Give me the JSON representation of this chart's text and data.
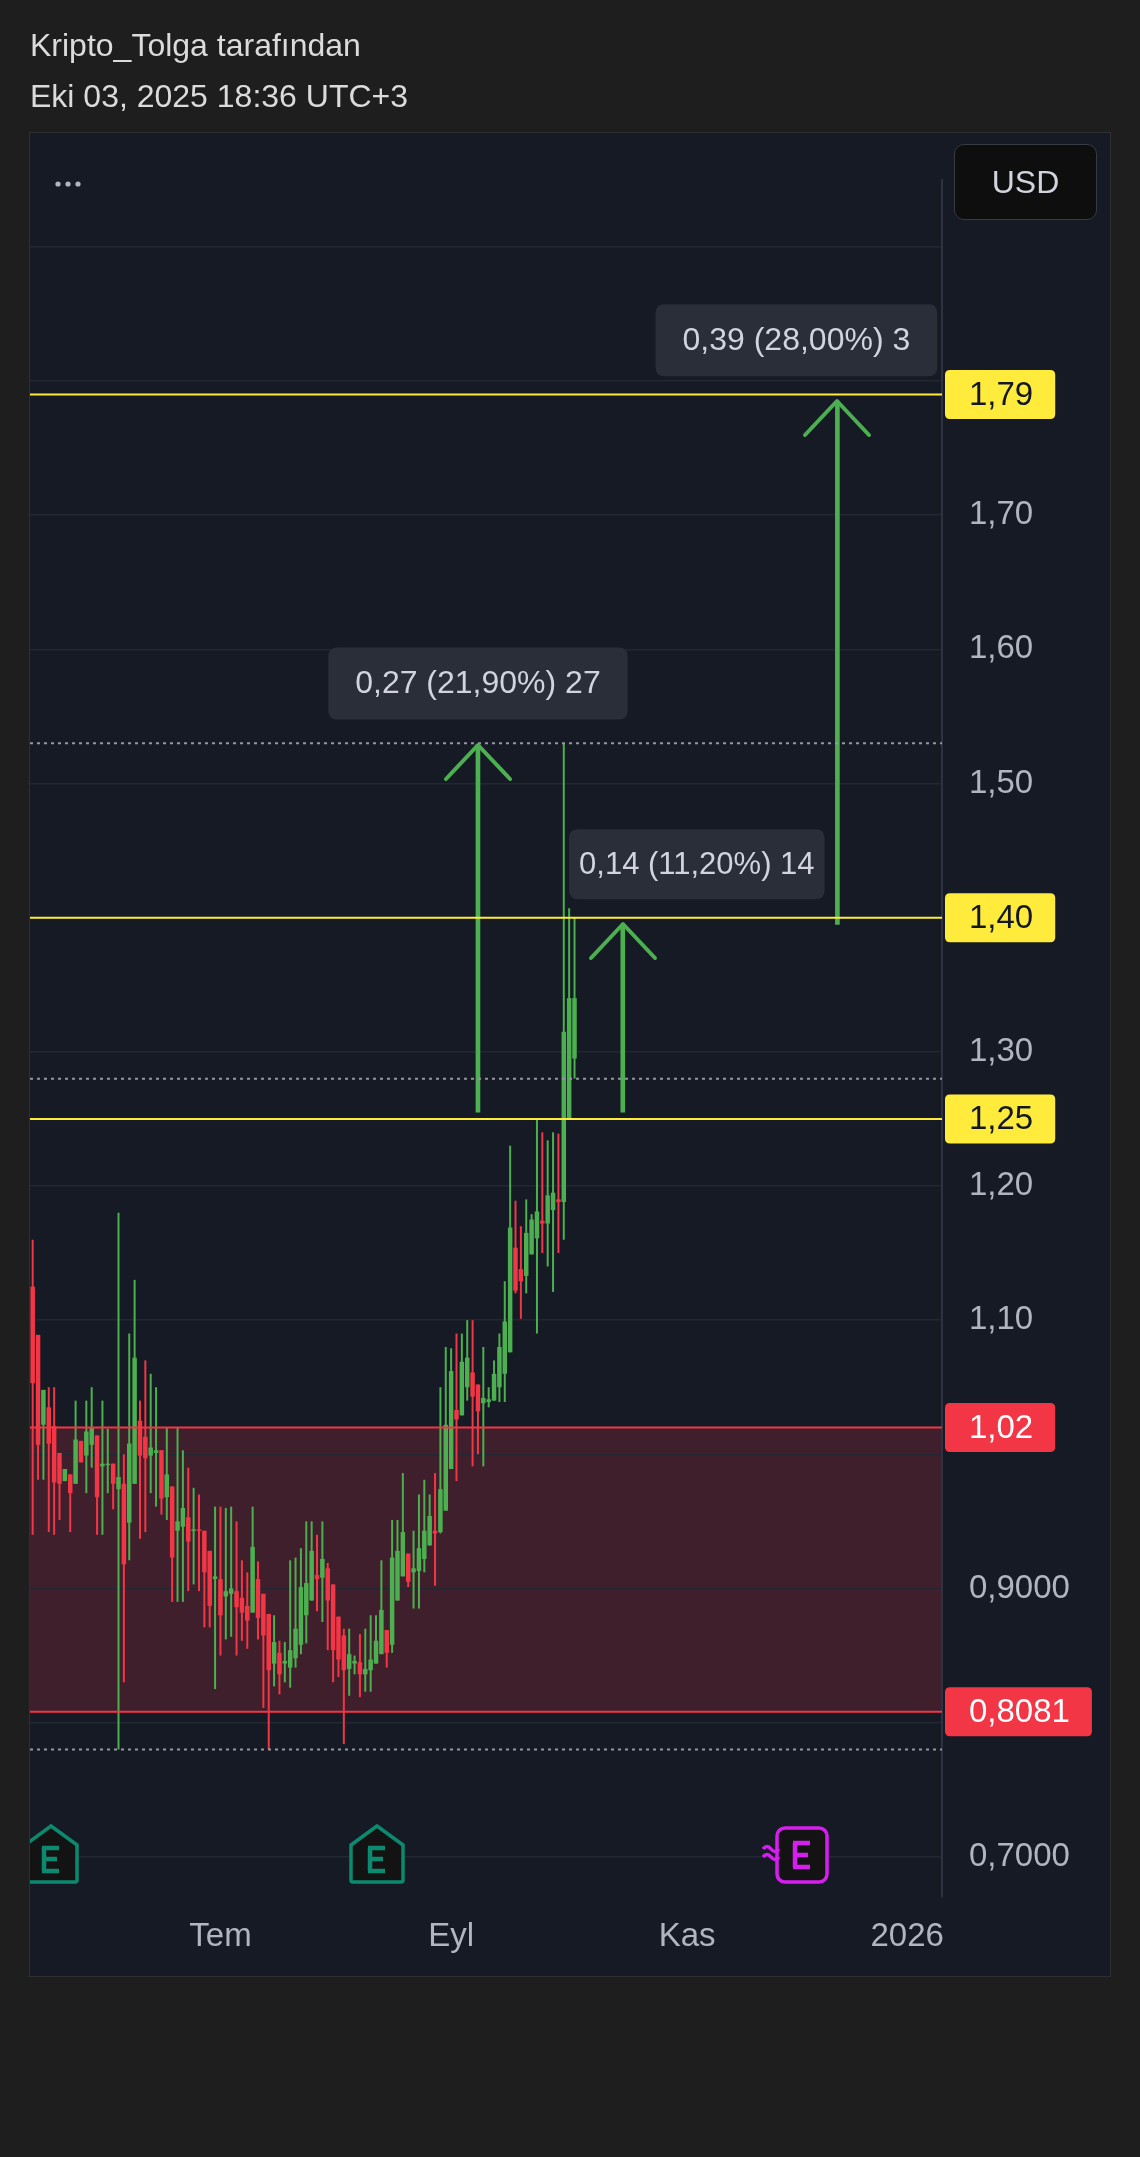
{
  "chart_data": {
    "type": "candlestick",
    "title": "Kripto_Tolga tarafından",
    "subtitle": "Eki 03, 2025 18:36 UTC+3",
    "ylabel": "USD",
    "categories": [
      null,
      null,
      null,
      null,
      null,
      null,
      null,
      null,
      null,
      null,
      null,
      null,
      null,
      null,
      null,
      null,
      null,
      null,
      null,
      null,
      null,
      null,
      null,
      null,
      null,
      null,
      null,
      null,
      null,
      null,
      null,
      null,
      null,
      null,
      null,
      "Tem",
      null,
      null,
      null,
      null,
      null,
      null,
      null,
      null,
      null,
      null,
      null,
      null,
      null,
      null,
      null,
      null,
      null,
      null,
      null,
      null,
      null,
      null,
      null,
      null,
      null,
      null,
      null,
      null,
      null,
      null,
      null,
      null,
      null,
      null,
      null,
      null,
      null,
      null,
      null,
      null,
      null,
      null,
      "Eyl",
      null,
      null,
      null,
      null,
      null,
      null,
      null,
      null,
      null,
      null,
      null,
      null,
      null,
      null,
      null,
      null,
      null,
      null,
      null,
      null,
      null,
      null,
      null,
      null,
      null,
      null,
      null,
      null,
      null,
      null,
      null,
      null,
      null,
      null,
      null,
      null,
      null,
      null,
      null,
      null,
      null,
      null,
      null,
      "Kas",
      null,
      null,
      null,
      null,
      null,
      null,
      null,
      null,
      null,
      null,
      null,
      null,
      null,
      null,
      null,
      null,
      null,
      null,
      null,
      null,
      null,
      null,
      null,
      null,
      null,
      null,
      null,
      null,
      null,
      null,
      null,
      null,
      null,
      null,
      null,
      null,
      null,
      null,
      null,
      null,
      "2026",
      null,
      null,
      null,
      null,
      null,
      null
    ],
    "ohlc": [
      [
        1.125,
        1.16,
        0.94,
        1.053
      ],
      [
        1.089,
        1.089,
        0.981,
        1.007
      ],
      [
        1.022,
        1.048,
        0.981,
        1.048
      ],
      [
        1.035,
        1.05,
        0.942,
        1.008
      ],
      [
        1.021,
        1.05,
        0.94,
        0.979
      ],
      [
        1.001,
        1.001,
        0.951,
        0.978
      ],
      [
        0.98,
        0.989,
        0.98,
        0.989
      ],
      [
        0.985,
        0.985,
        0.942,
        0.971
      ],
      [
        0.978,
        1.04,
        0.978,
        1.011
      ],
      [
        1.01,
        1.01,
        0.994,
        0.994
      ],
      [
        0.999,
        1.04,
        0.971,
        1.017
      ],
      [
        1.007,
        1.05,
        0.99,
        1.02
      ],
      [
        1.014,
        1.014,
        0.94,
        0.968
      ],
      [
        0.991,
        1.04,
        0.94,
        0.993
      ],
      [
        0.992,
        1.019,
        0.971,
        0.993
      ],
      [
        0.993,
        0.993,
        0.959,
        0.978
      ],
      [
        0.974,
        1.18,
        0.78,
        0.983
      ],
      [
        0.978,
        1.0,
        0.83,
        0.918
      ],
      [
        0.949,
        1.09,
        0.921,
        1.008
      ],
      [
        0.978,
        1.13,
        0.978,
        1.072
      ],
      [
        1.025,
        1.04,
        0.937,
        0.999
      ],
      [
        1.013,
        1.07,
        0.942,
        0.997
      ],
      [
        0.999,
        1.06,
        0.971,
        1.005
      ],
      [
        1.001,
        1.05,
        0.961,
        1.003
      ],
      [
        1.003,
        1.003,
        0.955,
        0.967
      ],
      [
        0.968,
        1.02,
        0.951,
        0.985
      ],
      [
        0.976,
        0.976,
        0.89,
        0.923
      ],
      [
        0.943,
        1.02,
        0.89,
        0.95
      ],
      [
        0.946,
        1.003,
        0.89,
        0.96
      ],
      [
        0.953,
        0.99,
        0.898,
        0.935
      ],
      [
        0.943,
        0.975,
        0.903,
        0.944
      ],
      [
        0.944,
        0.97,
        0.898,
        0.943
      ],
      [
        0.943,
        0.943,
        0.871,
        0.912
      ],
      [
        0.928,
        0.928,
        0.871,
        0.887
      ],
      [
        0.907,
        0.961,
        0.825,
        0.909
      ],
      [
        0.907,
        0.961,
        0.85,
        0.88
      ],
      [
        0.894,
        0.96,
        0.862,
        0.898
      ],
      [
        0.896,
        0.961,
        0.864,
        0.9
      ],
      [
        0.898,
        0.95,
        0.85,
        0.886
      ],
      [
        0.893,
        0.921,
        0.861,
        0.882
      ],
      [
        0.887,
        0.912,
        0.855,
        0.876
      ],
      [
        0.882,
        0.961,
        0.882,
        0.931
      ],
      [
        0.907,
        0.92,
        0.862,
        0.878
      ],
      [
        0.896,
        0.896,
        0.811,
        0.865
      ],
      [
        0.881,
        0.881,
        0.78,
        0.839
      ],
      [
        0.844,
        0.88,
        0.827,
        0.86
      ],
      [
        0.852,
        0.861,
        0.821,
        0.836
      ],
      [
        0.844,
        0.86,
        0.83,
        0.846
      ],
      [
        0.841,
        0.921,
        0.826,
        0.854
      ],
      [
        0.848,
        0.923,
        0.841,
        0.87
      ],
      [
        0.858,
        0.93,
        0.851,
        0.901
      ],
      [
        0.88,
        0.95,
        0.859,
        0.904
      ],
      [
        0.891,
        0.95,
        0.891,
        0.928
      ],
      [
        0.91,
        0.94,
        0.883,
        0.907
      ],
      [
        0.908,
        0.95,
        0.875,
        0.922
      ],
      [
        0.915,
        0.919,
        0.854,
        0.891
      ],
      [
        0.903,
        0.903,
        0.83,
        0.854
      ],
      [
        0.879,
        0.879,
        0.834,
        0.847
      ],
      [
        0.865,
        0.87,
        0.784,
        0.839
      ],
      [
        0.84,
        0.87,
        0.82,
        0.851
      ],
      [
        0.844,
        0.85,
        0.836,
        0.846
      ],
      [
        0.845,
        0.866,
        0.819,
        0.836
      ],
      [
        0.836,
        0.87,
        0.823,
        0.84
      ],
      [
        0.839,
        0.88,
        0.823,
        0.847
      ],
      [
        0.844,
        0.88,
        0.844,
        0.861
      ],
      [
        0.851,
        0.921,
        0.851,
        0.884
      ],
      [
        0.869,
        0.869,
        0.841,
        0.852
      ],
      [
        0.858,
        0.951,
        0.852,
        0.923
      ],
      [
        0.891,
        0.951,
        0.891,
        0.928
      ],
      [
        0.909,
        0.986,
        0.909,
        0.942
      ],
      [
        0.926,
        0.926,
        0.901,
        0.905
      ],
      [
        0.912,
        0.943,
        0.885,
        0.915
      ],
      [
        0.913,
        0.97,
        0.885,
        0.93
      ],
      [
        0.922,
        0.981,
        0.912,
        0.943
      ],
      [
        0.932,
        0.97,
        0.932,
        0.954
      ],
      [
        0.943,
        0.986,
        0.902,
        0.941
      ],
      [
        0.942,
        1.05,
        0.941,
        0.974
      ],
      [
        0.958,
        1.08,
        0.958,
        1.022
      ],
      [
        0.989,
        1.079,
        0.989,
        1.062
      ],
      [
        1.033,
        1.09,
        0.98,
        1.026
      ],
      [
        1.029,
        1.09,
        1.029,
        1.069
      ],
      [
        1.05,
        1.1,
        1.04,
        1.072
      ],
      [
        1.061,
        1.1,
        0.991,
        1.043
      ],
      [
        1.052,
        1.052,
        1.0,
        1.032
      ],
      [
        1.038,
        1.08,
        0.991,
        1.042
      ],
      [
        1.039,
        1.05,
        1.035,
        1.041
      ],
      [
        1.04,
        1.07,
        1.04,
        1.06
      ],
      [
        1.05,
        1.09,
        1.039,
        1.08
      ],
      [
        1.06,
        1.129,
        1.039,
        1.099
      ],
      [
        1.076,
        1.23,
        1.076,
        1.169
      ],
      [
        1.154,
        1.189,
        1.12,
        1.122
      ],
      [
        1.138,
        1.17,
        1.101,
        1.129
      ],
      [
        1.133,
        1.19,
        1.12,
        1.165
      ],
      [
        1.149,
        1.179,
        1.149,
        1.175
      ],
      [
        1.161,
        1.25,
        1.09,
        1.181
      ],
      [
        1.174,
        1.24,
        1.15,
        1.172
      ],
      [
        1.172,
        1.234,
        1.14,
        1.193
      ],
      [
        1.182,
        1.24,
        1.121,
        1.195
      ],
      [
        1.19,
        1.239,
        1.15,
        1.188
      ],
      [
        1.188,
        1.53,
        1.16,
        1.315
      ],
      [
        1.25,
        1.407,
        1.25,
        1.34
      ],
      [
        1.295,
        1.4,
        1.28,
        1.34
      ],
      null,
      null,
      null,
      null,
      null,
      null,
      null,
      null,
      null,
      null,
      null,
      null,
      null,
      null,
      null,
      null,
      null,
      null,
      null,
      null,
      null,
      null,
      null,
      null,
      null,
      null,
      null,
      null,
      null,
      null,
      null,
      null,
      null,
      null,
      null,
      null,
      null,
      null,
      null,
      null,
      null,
      null,
      null,
      null,
      null,
      null,
      null,
      null,
      null,
      null,
      null,
      null,
      null,
      null,
      null,
      null,
      null,
      null,
      null,
      null,
      null,
      null,
      null,
      null,
      null,
      null,
      null,
      null
    ],
    "colors": [
      "#f23645",
      "#f23645",
      "#4caf50",
      "#f23645",
      "#f23645",
      "#f23645",
      "#4caf50",
      "#f23645",
      "#4caf50",
      "#f23645",
      "#4caf50",
      "#4caf50",
      "#f23645",
      "#4caf50",
      "#4caf50",
      "#f23645",
      "#4caf50",
      "#f23645",
      "#4caf50",
      "#4caf50",
      "#f23645",
      "#f23645",
      "#4caf50",
      "#4caf50",
      "#f23645",
      "#4caf50",
      "#f23645",
      "#4caf50",
      "#4caf50",
      "#f23645",
      "#4caf50",
      "#f23645",
      "#f23645",
      "#f23645",
      "#4caf50",
      "#f23645",
      "#4caf50",
      "#4caf50",
      "#f23645",
      "#f23645",
      "#f23645",
      "#4caf50",
      "#f23645",
      "#f23645",
      "#f23645",
      "#4caf50",
      "#f23645",
      "#4caf50",
      "#4caf50",
      "#4caf50",
      "#4caf50",
      "#4caf50",
      "#4caf50",
      "#f23645",
      "#4caf50",
      "#f23645",
      "#f23645",
      "#f23645",
      "#f23645",
      "#4caf50",
      "#4caf50",
      "#f23645",
      "#4caf50",
      "#4caf50",
      "#4caf50",
      "#4caf50",
      "#f23645",
      "#4caf50",
      "#4caf50",
      "#4caf50",
      "#f23645",
      "#4caf50",
      "#4caf50",
      "#4caf50",
      "#4caf50",
      "#f23645",
      "#4caf50",
      "#4caf50",
      "#4caf50",
      "#f23645",
      "#4caf50",
      "#4caf50",
      "#f23645",
      "#f23645",
      "#4caf50",
      "#4caf50",
      "#4caf50",
      "#4caf50",
      "#4caf50",
      "#4caf50",
      "#f23645",
      "#f23645",
      "#4caf50",
      "#4caf50",
      "#4caf50",
      "#f23645",
      "#4caf50",
      "#4caf50",
      "#f23645",
      "#4caf50",
      "#4caf50",
      "#4caf50",
      null,
      null,
      null,
      null,
      null,
      null,
      null,
      null,
      null,
      null,
      null,
      null,
      null,
      null,
      null,
      null,
      null,
      null,
      null,
      null,
      null,
      null,
      null,
      null,
      null,
      null,
      null,
      null,
      null,
      null,
      null,
      null,
      null,
      null,
      null,
      null,
      null,
      null,
      null,
      null,
      null,
      null,
      null,
      null,
      null,
      null,
      null,
      null,
      null,
      null,
      null,
      null,
      null,
      null,
      null,
      null,
      null,
      null,
      null,
      null,
      null,
      null,
      null,
      null,
      null,
      null,
      null,
      null
    ],
    "series": [
      {
        "type": "bar",
        "color": "#4caf50",
        "base": [
          null,
          null,
          null,
          null,
          null,
          null,
          null,
          null,
          null,
          null,
          null,
          null,
          null,
          null,
          null,
          null,
          null,
          null,
          null,
          null,
          null,
          null,
          null,
          null,
          null,
          null,
          null,
          null,
          null,
          null,
          null,
          null,
          null,
          null,
          null,
          null,
          null,
          null,
          null,
          null,
          null,
          null,
          null,
          null,
          null,
          null,
          null,
          null,
          null,
          null,
          null,
          null,
          null,
          null,
          null,
          null,
          null,
          null,
          null,
          null,
          null,
          null,
          null,
          null,
          null,
          null,
          null,
          null,
          null,
          null,
          null,
          null,
          null,
          null,
          null,
          null,
          null,
          null,
          null,
          null,
          null,
          null,
          null,
          1.255,
          null,
          null,
          null,
          null,
          null,
          null,
          null,
          null,
          null,
          null,
          null,
          null,
          null,
          null,
          null,
          null,
          null,
          null,
          null,
          null,
          null,
          null,
          null,
          null,
          null,
          null,
          1.255,
          null,
          null,
          null,
          null,
          null,
          null,
          null,
          null,
          null,
          null,
          null,
          null,
          null,
          null,
          null,
          null,
          null,
          null,
          null,
          null,
          null,
          null,
          null,
          null,
          null,
          null,
          null,
          null,
          null,
          null,
          null,
          null,
          null,
          null,
          null,
          null,
          null,
          null,
          null,
          1.395,
          null,
          null,
          null,
          null,
          null,
          null,
          null,
          null,
          null,
          null,
          null,
          null,
          null,
          null,
          null,
          null,
          null,
          null,
          null
        ],
        "values": [
          null,
          null,
          null,
          null,
          null,
          null,
          null,
          null,
          null,
          null,
          null,
          null,
          null,
          null,
          null,
          null,
          null,
          null,
          null,
          null,
          null,
          null,
          null,
          null,
          null,
          null,
          null,
          null,
          null,
          null,
          null,
          null,
          null,
          null,
          null,
          null,
          null,
          null,
          null,
          null,
          null,
          null,
          null,
          null,
          null,
          null,
          null,
          null,
          null,
          null,
          null,
          null,
          null,
          null,
          null,
          null,
          null,
          null,
          null,
          null,
          null,
          null,
          null,
          null,
          null,
          null,
          null,
          null,
          null,
          null,
          null,
          null,
          null,
          null,
          null,
          null,
          null,
          null,
          null,
          null,
          null,
          null,
          null,
          0.274,
          null,
          null,
          null,
          null,
          null,
          null,
          null,
          null,
          null,
          null,
          null,
          null,
          null,
          null,
          null,
          null,
          null,
          null,
          null,
          null,
          null,
          null,
          null,
          null,
          null,
          null,
          0.14,
          null,
          null,
          null,
          null,
          null,
          null,
          null,
          null,
          null,
          null,
          null,
          null,
          null,
          null,
          null,
          null,
          null,
          null,
          null,
          null,
          null,
          null,
          null,
          null,
          null,
          null,
          null,
          null,
          null,
          null,
          null,
          null,
          null,
          null,
          null,
          null,
          null,
          null,
          null,
          0.39,
          null,
          null,
          null,
          null,
          null,
          null,
          null,
          null,
          null,
          null,
          null,
          null,
          null,
          null,
          null,
          null,
          null,
          null,
          null
        ]
      }
    ],
    "annotations": [
      {
        "text": "0,27 (21,90%) 27",
        "y": 1.529
      },
      "0,14 (11,20%) 14",
      "0,39 (28,00%) 3"
    ],
    "ref_lines": [
      {
        "axis": "y",
        "value": 1.79,
        "label": "1,79",
        "color": "#ffeb3b"
      },
      {
        "axis": "y",
        "value": 1.4,
        "label": "1,40",
        "color": "#ffeb3b"
      },
      {
        "axis": "y",
        "value": 1.25,
        "label": "1,25",
        "color": "#ffeb3b"
      },
      {
        "axis": "y",
        "value": 1.02,
        "label": "1,02",
        "color": "#f23645"
      },
      {
        "axis": "y",
        "value": 0.8081,
        "label": "0,8081",
        "color": "#f23645"
      },
      {
        "axis": "y",
        "value": 1.53,
        "color": "#9598a1",
        "line_style": "dotted"
      },
      {
        "axis": "y",
        "value": 1.28,
        "color": "#9598a1",
        "line_style": "dotted"
      },
      {
        "axis": "y",
        "value": 0.78,
        "color": "#9598a1",
        "line_style": "dotted"
      }
    ],
    "bands": [
      {
        "axis": "y",
        "from": 0.8081,
        "to": 1.02,
        "color": "#3e1f2b"
      }
    ],
    "ylim": [
      0.67,
      1.95
    ],
    "yticks": [
      {
        "value": 0.7,
        "label": "0,7000"
      },
      {
        "value": 0.8,
        "label": null
      },
      {
        "value": 0.9,
        "label": "0,9000"
      },
      {
        "value": 1.0,
        "label": null
      },
      {
        "value": 1.1,
        "label": "1,10"
      },
      {
        "value": 1.2,
        "label": "1,20"
      },
      {
        "value": 1.3,
        "label": "1,30"
      },
      {
        "value": 1.4,
        "label": null
      },
      {
        "value": 1.5,
        "label": "1,50"
      },
      {
        "value": 1.6,
        "label": "1,60"
      },
      {
        "value": 1.7,
        "label": "1,70"
      },
      {
        "value": 1.8,
        "label": null
      },
      {
        "value": 1.9,
        "label": null
      }
    ],
    "grid": "y"
  }
}
